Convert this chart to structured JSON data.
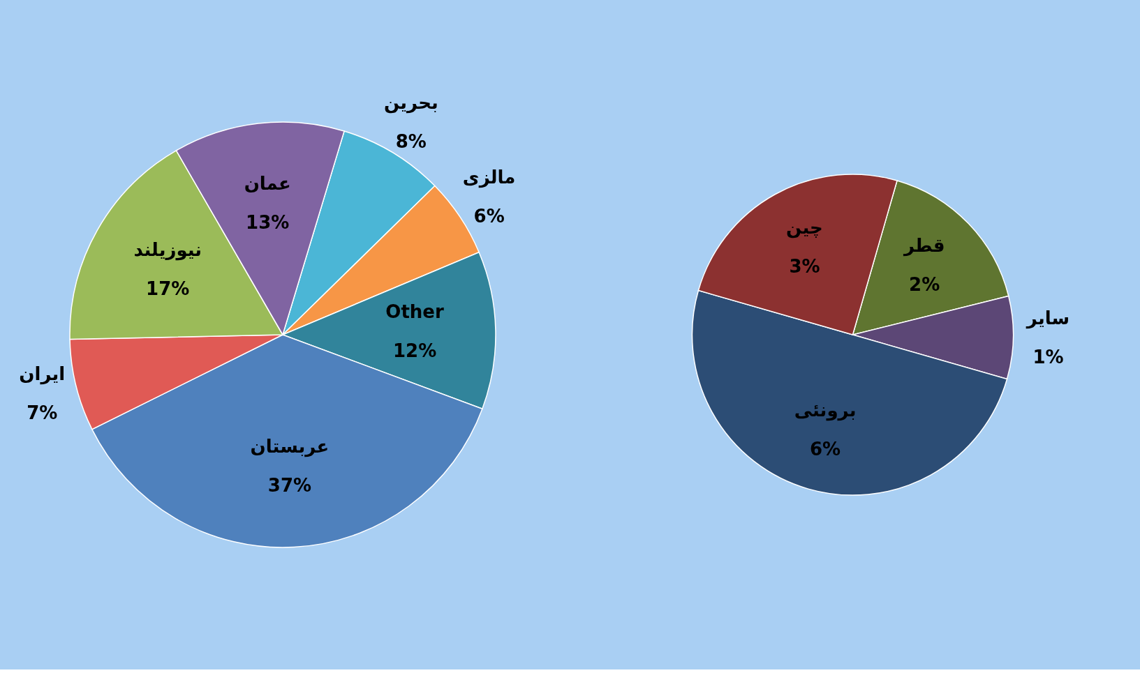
{
  "chart_data": [
    {
      "type": "pie",
      "categories": [
        "بحرین",
        "مالزی",
        "Other",
        "عربستان",
        "ایران",
        "نیوزیلند",
        "عمان"
      ],
      "values": [
        8,
        6,
        12,
        37,
        7,
        17,
        13
      ],
      "colors": [
        "#4bb6d6",
        "#f79646",
        "#31849b",
        "#4f81bd",
        "#e05a55",
        "#9bbb59",
        "#8064a2"
      ],
      "value_labels": [
        "8%",
        "6%",
        "12%",
        "37%",
        "7%",
        "17%",
        "13%"
      ]
    },
    {
      "type": "pie",
      "categories": [
        "قطر",
        "سایر",
        "برونئی",
        "چین"
      ],
      "values": [
        2,
        1,
        6,
        3
      ],
      "colors": [
        "#5f7530",
        "#5c4776",
        "#2c4d75",
        "#8c3130"
      ],
      "value_labels": [
        "2%",
        "1%",
        "6%",
        "3%"
      ]
    }
  ]
}
